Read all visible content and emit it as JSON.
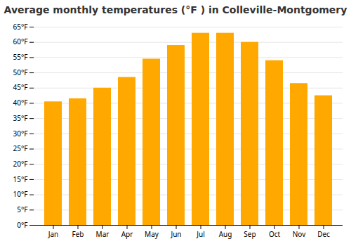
{
  "chart_data": {
    "type": "bar",
    "title": "Average monthly temperatures (°F ) in Colleville-Montgomery",
    "categories": [
      "Jan",
      "Feb",
      "Mar",
      "Apr",
      "May",
      "Jun",
      "Jul",
      "Aug",
      "Sep",
      "Oct",
      "Nov",
      "Dec"
    ],
    "values": [
      40.5,
      41.5,
      45.0,
      48.5,
      54.5,
      59.0,
      63.0,
      63.0,
      60.0,
      54.0,
      46.5,
      42.5
    ],
    "color": "#FFA800",
    "ylim": [
      0,
      65
    ],
    "yticks": [
      {
        "value": 0,
        "label": "0°F"
      },
      {
        "value": 5,
        "label": "5°F"
      },
      {
        "value": 10,
        "label": "10°F"
      },
      {
        "value": 15,
        "label": "15°F"
      },
      {
        "value": 20,
        "label": "20°F"
      },
      {
        "value": 25,
        "label": "25°F"
      },
      {
        "value": 30,
        "label": "30°F"
      },
      {
        "value": 35,
        "label": "35°F"
      },
      {
        "value": 40,
        "label": "40°F"
      },
      {
        "value": 45,
        "label": "45°F"
      },
      {
        "value": 50,
        "label": "50°F"
      },
      {
        "value": 55,
        "label": "55°F"
      },
      {
        "value": 60,
        "label": "60°F"
      },
      {
        "value": 65,
        "label": "65°F"
      }
    ],
    "grid": true
  }
}
